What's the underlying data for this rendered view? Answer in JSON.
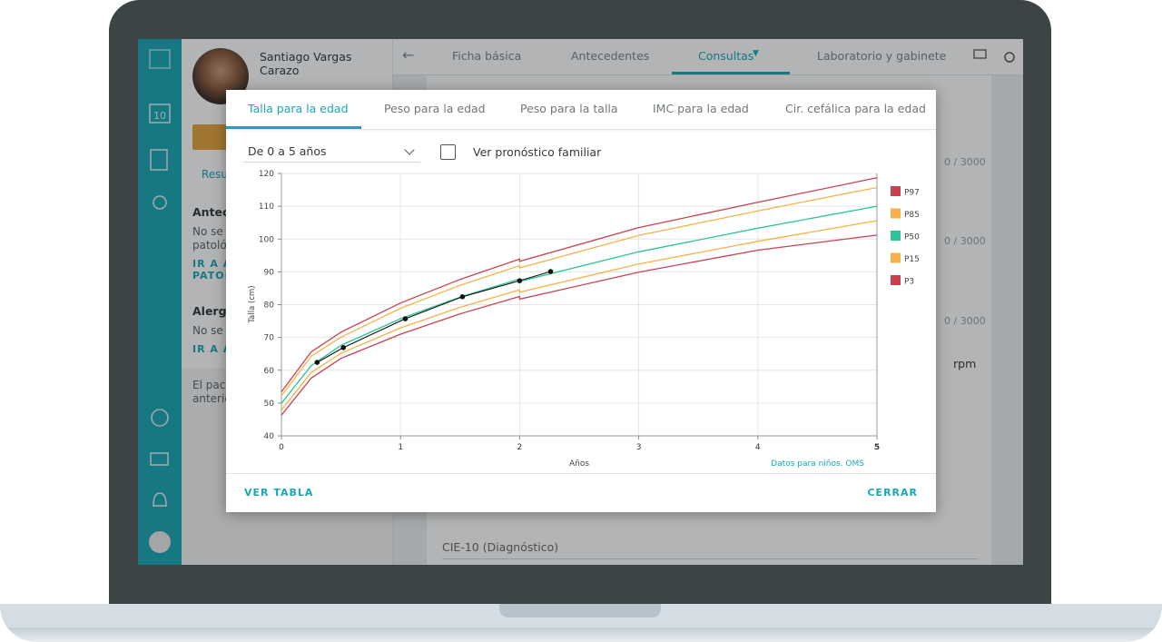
{
  "nav_tabs": [
    "Ficha básica",
    "Antecedentes",
    "Consultas",
    "Laboratorio y gabinete"
  ],
  "patient": {
    "name": "Santiago Vargas Carazo",
    "tab": "Resu"
  },
  "calendar_day": "10",
  "left_panel_fragments": [
    "Antec",
    "No se",
    "patoló",
    "IR A A",
    "PATOL",
    "Alergi",
    "No se",
    "IR A A",
    "El paci",
    "anterio"
  ],
  "right_fragments": [
    "0 / 3000",
    "0 / 3000",
    "0 / 3000",
    "rpm",
    "CIE-10 (Diagnóstico)"
  ],
  "modal": {
    "tabs": [
      "Talla para la edad",
      "Peso para la edad",
      "Peso para la talla",
      "IMC para la edad",
      "Cir. cefálica para la edad"
    ],
    "range_select": "De 0 a 5 años",
    "checkbox_label": "Ver pronóstico familiar",
    "footer_left": "VER TABLA",
    "footer_right": "CERRAR"
  },
  "chart_data": {
    "type": "line",
    "y_label": "Talla (cm)",
    "x_label": "Años",
    "note": "Datos para niños. OMS",
    "xlim": [
      0,
      5
    ],
    "xticks": [
      0,
      1,
      2,
      3,
      4,
      5
    ],
    "ylim": [
      40,
      120
    ],
    "yticks": [
      40,
      50,
      60,
      70,
      80,
      90,
      100,
      110,
      120
    ],
    "grid": true,
    "legend": "right",
    "series": [
      {
        "name": "P97",
        "color": "#c9414f",
        "x": [
          0,
          0.25,
          0.5,
          1,
          1.5,
          2,
          2,
          3,
          4,
          5
        ],
        "values": [
          53.4,
          65.6,
          71.6,
          80.5,
          87.7,
          93.9,
          93.2,
          103.5,
          111.2,
          118.7
        ]
      },
      {
        "name": "P85",
        "color": "#f5b24a",
        "x": [
          0,
          0.25,
          0.5,
          1,
          1.5,
          2,
          2,
          3,
          4,
          5
        ],
        "values": [
          52.2,
          64.3,
          70.1,
          78.9,
          85.9,
          91.9,
          91.2,
          101.1,
          108.6,
          115.7
        ]
      },
      {
        "name": "P50",
        "color": "#2dc39a",
        "x": [
          0,
          0.25,
          0.5,
          1,
          1.5,
          2,
          2,
          3,
          4,
          5
        ],
        "values": [
          49.9,
          61.4,
          67.6,
          75.7,
          82.3,
          87.8,
          87.1,
          96.1,
          103.3,
          110.0
        ]
      },
      {
        "name": "P15",
        "color": "#f5b24a",
        "x": [
          0,
          0.25,
          0.5,
          1,
          1.5,
          2,
          2,
          3,
          4,
          5
        ],
        "values": [
          47.9,
          59.3,
          65.2,
          72.9,
          79.2,
          84.5,
          83.8,
          92.4,
          99.3,
          105.6
        ]
      },
      {
        "name": "P3",
        "color": "#c9414f",
        "x": [
          0,
          0.25,
          0.5,
          1,
          1.5,
          2,
          2,
          3,
          4,
          5
        ],
        "values": [
          46.3,
          57.6,
          63.6,
          71.0,
          77.2,
          82.5,
          81.7,
          89.9,
          96.6,
          101.2
        ]
      },
      {
        "color": "#111111",
        "x": [
          0.3,
          0.52,
          1.04,
          1.52,
          2.0,
          2.26
        ],
        "values": [
          62.4,
          66.9,
          75.7,
          82.4,
          87.3,
          90.1
        ]
      }
    ]
  }
}
